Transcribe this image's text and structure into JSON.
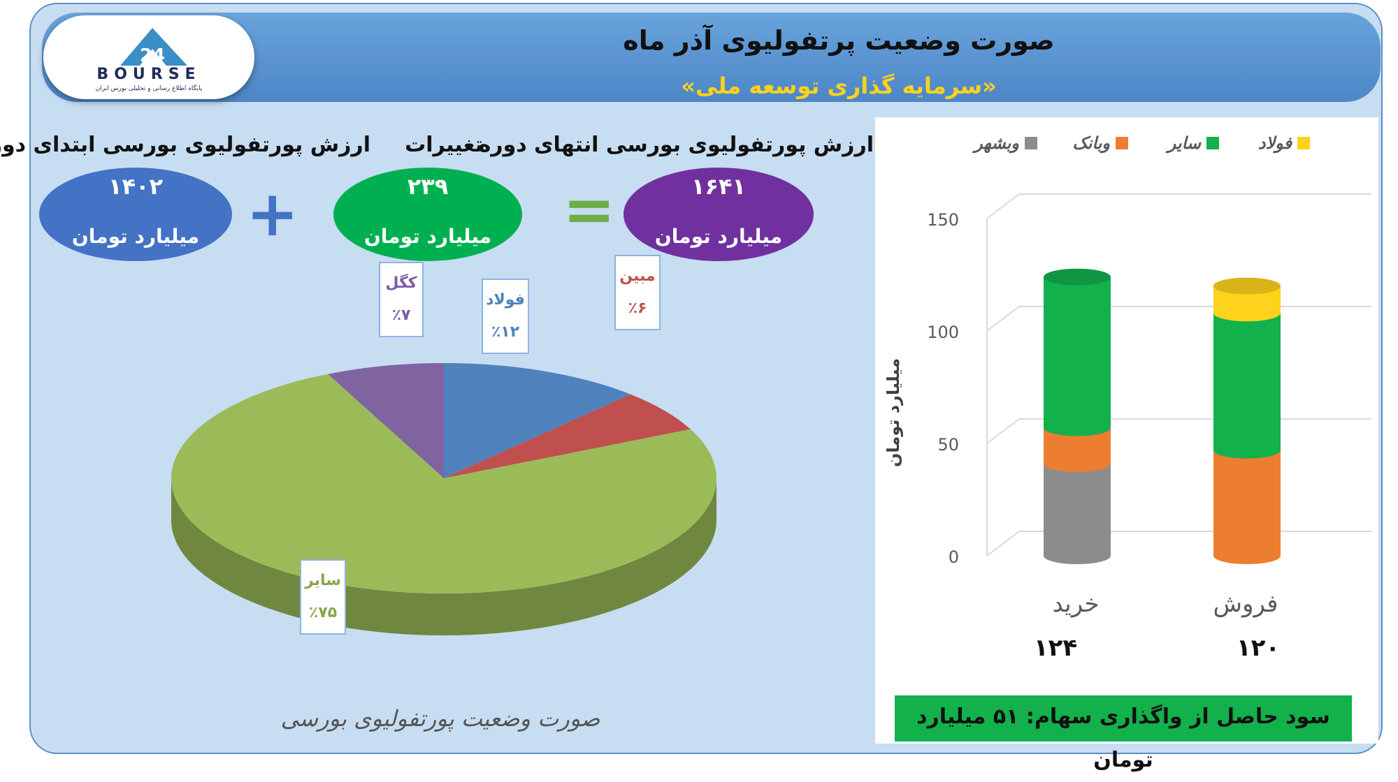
{
  "header": {
    "title": "صورت وضعیت پرتفولیوی آذر ماه",
    "subtitle": "«سرمایه گذاری توسعه ملی»",
    "logo_text": "BOURSE",
    "logo_subtext": "پایگاه اطلاع رسانی و تحلیلی بورس ایران"
  },
  "summary": {
    "start": {
      "label": "ارزش پورتفولیوی بورسی ابتدای دوره",
      "value": "۱۴۰۲",
      "unit": "میلیارد تومان",
      "color": "#4472c4"
    },
    "change": {
      "label": "تغییرات",
      "value": "۲۳۹",
      "unit": "میلیارد تومان",
      "color": "#00b050"
    },
    "end": {
      "label": "ارزش پورتفولیوی بورسی انتهای دوره",
      "value": "۱۶۴۱",
      "unit": "میلیارد تومان",
      "color": "#7030a0"
    },
    "plus": "+",
    "equals": "="
  },
  "pie_caption": "صورت وضعیت پورتفولیوی بورسی",
  "bar_footer": {
    "buy_total": "۱۲۴",
    "sell_total": "۱۲۰",
    "profit": "سود حاصل از واگذاری سهام: ۵۱ میلیارد تومان"
  },
  "chart_data": [
    {
      "type": "pie",
      "labels": [
        "کگل",
        "فولاد",
        "مبین",
        "سایر"
      ],
      "values": [
        7,
        12,
        6,
        75
      ],
      "display_values": [
        "٪۷",
        "٪۱۲",
        "٪۶",
        "٪۷۵"
      ],
      "colors": [
        "#8064a2",
        "#4f81bd",
        "#c0504d",
        "#9bbb59"
      ],
      "label_colors": [
        "#7b5aa6",
        "#4f81bd",
        "#c0504d",
        "#8aa64a"
      ]
    },
    {
      "type": "bar",
      "stacked": true,
      "categories": [
        "خرید",
        "فروش"
      ],
      "ylabel": "میلیارد تومان",
      "ylim": [
        0,
        150
      ],
      "yticks": [
        0,
        50,
        100,
        150
      ],
      "legend_position": "top",
      "series": [
        {
          "name": "وبشهر",
          "values": [
            41,
            0
          ],
          "color": "#8c8c8c"
        },
        {
          "name": "وبانک",
          "values": [
            16,
            47
          ],
          "color": "#ed7d31"
        },
        {
          "name": "سایر",
          "values": [
            67,
            61
          ],
          "color": "#12b14c"
        },
        {
          "name": "فولاد",
          "values": [
            0,
            12
          ],
          "color": "#ffd21c"
        }
      ]
    }
  ]
}
